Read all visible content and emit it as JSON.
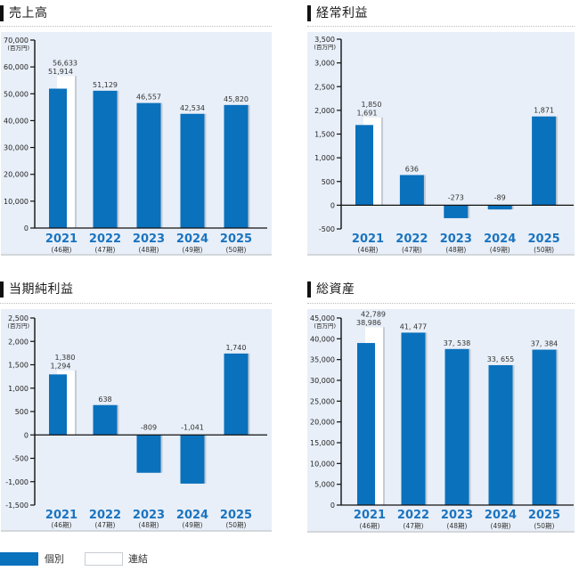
{
  "colors": {
    "individual": "#0a71bd",
    "consolidated": "#ffffff",
    "panel_bg": "#e8eff8",
    "year_label": "#1b74c0",
    "bar_shadow": "#c3cbd5"
  },
  "legend": {
    "items": [
      {
        "label": "個別",
        "color": "#0a71bd"
      },
      {
        "label": "連結",
        "color": "#ffffff"
      }
    ]
  },
  "chart_data": [
    {
      "type": "bar",
      "title": "売上高",
      "unit": "(百万円)",
      "categories": [
        "2021",
        "2022",
        "2023",
        "2024",
        "2025"
      ],
      "periods": [
        "(46期)",
        "(47期)",
        "(48期)",
        "(49期)",
        "(50期)"
      ],
      "ylim": [
        0,
        70000
      ],
      "yticks": [
        70000,
        60000,
        50000,
        40000,
        30000,
        20000,
        10000,
        0
      ],
      "ytick_labels": [
        "70,000",
        "60,000",
        "50,000",
        "40,000",
        "30,000",
        "20,000",
        "10,000",
        "0"
      ],
      "series": [
        {
          "name": "個別",
          "values": [
            51914,
            51129,
            46557,
            42534,
            45820
          ],
          "labels": [
            "51,914",
            "51,129",
            "46,557",
            "42,534",
            "45,820"
          ]
        },
        {
          "name": "連結",
          "values": [
            56633,
            null,
            null,
            null,
            null
          ],
          "labels": [
            "56,633",
            null,
            null,
            null,
            null
          ]
        }
      ],
      "legend": "bottom-left",
      "grid": false
    },
    {
      "type": "bar",
      "title": "経常利益",
      "unit": "(百万円)",
      "categories": [
        "2021",
        "2022",
        "2023",
        "2024",
        "2025"
      ],
      "periods": [
        "(46期)",
        "(47期)",
        "(48期)",
        "(49期)",
        "(50期)"
      ],
      "ylim": [
        -500,
        3500
      ],
      "yticks": [
        3500,
        3000,
        2500,
        2000,
        1500,
        1000,
        500,
        0,
        -500
      ],
      "ytick_labels": [
        "3,500",
        "3,000",
        "2,500",
        "2,000",
        "1,500",
        "1,000",
        "500",
        "0",
        "-500"
      ],
      "series": [
        {
          "name": "個別",
          "values": [
            1691,
            636,
            -273,
            -89,
            1871
          ],
          "labels": [
            "1,691",
            "636",
            "-273",
            "-89",
            "1,871"
          ]
        },
        {
          "name": "連結",
          "values": [
            1850,
            null,
            null,
            null,
            null
          ],
          "labels": [
            "1,850",
            null,
            null,
            null,
            null
          ]
        }
      ],
      "legend": "bottom-left",
      "grid": false
    },
    {
      "type": "bar",
      "title": "当期純利益",
      "unit": "(百万円)",
      "categories": [
        "2021",
        "2022",
        "2023",
        "2024",
        "2025"
      ],
      "periods": [
        "(46期)",
        "(47期)",
        "(48期)",
        "(49期)",
        "(50期)"
      ],
      "ylim": [
        -1500,
        2500
      ],
      "yticks": [
        2500,
        2000,
        1500,
        1000,
        500,
        0,
        -500,
        -1000,
        -1500
      ],
      "ytick_labels": [
        "2,500",
        "2,000",
        "1,500",
        "1,000",
        "500",
        "0",
        "-500",
        "-1,000",
        "-1,500"
      ],
      "series": [
        {
          "name": "個別",
          "values": [
            1294,
            638,
            -809,
            -1041,
            1740
          ],
          "labels": [
            "1,294",
            "638",
            "-809",
            "-1,041",
            "1,740"
          ]
        },
        {
          "name": "連結",
          "values": [
            1380,
            null,
            null,
            null,
            null
          ],
          "labels": [
            "1,380",
            null,
            null,
            null,
            null
          ]
        }
      ],
      "legend": "bottom-left",
      "grid": false
    },
    {
      "type": "bar",
      "title": "総資産",
      "unit": "(百万円)",
      "categories": [
        "2021",
        "2022",
        "2023",
        "2024",
        "2025"
      ],
      "periods": [
        "(46期)",
        "(47期)",
        "(48期)",
        "(49期)",
        "(50期)"
      ],
      "ylim": [
        0,
        45000
      ],
      "yticks": [
        45000,
        40000,
        35000,
        30000,
        25000,
        20000,
        15000,
        10000,
        5000,
        0
      ],
      "ytick_labels": [
        "45,000",
        "40,000",
        "35,000",
        "30,000",
        "25,000",
        "20,000",
        "15,000",
        "10,000",
        "5,000",
        "0"
      ],
      "series": [
        {
          "name": "個別",
          "values": [
            38986,
            41477,
            37538,
            33655,
            37384
          ],
          "labels": [
            "38,986",
            "41, 477",
            "37, 538",
            "33, 655",
            "37, 384"
          ]
        },
        {
          "name": "連結",
          "values": [
            42789,
            null,
            null,
            null,
            null
          ],
          "labels": [
            "42,789",
            null,
            null,
            null,
            null
          ]
        }
      ],
      "legend": "bottom-left",
      "grid": false
    }
  ]
}
